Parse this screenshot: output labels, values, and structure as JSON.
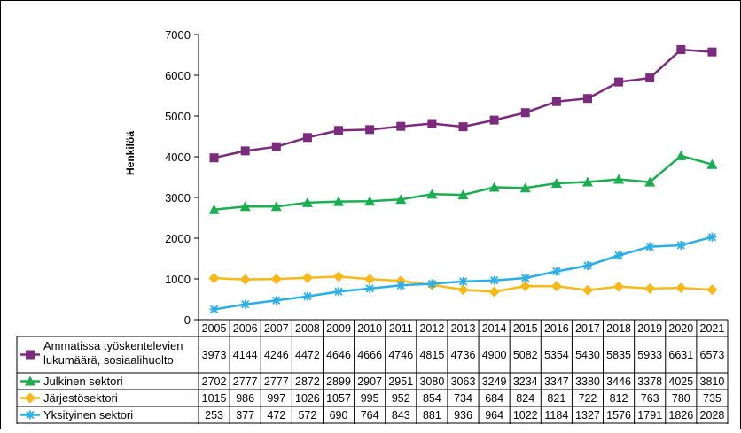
{
  "chart_data": {
    "type": "line",
    "title": "",
    "xlabel": "",
    "ylabel": "Henkilöä",
    "ylim": [
      0,
      7000
    ],
    "yticks": [
      0,
      1000,
      2000,
      3000,
      4000,
      5000,
      6000,
      7000
    ],
    "grid": false,
    "legend": "data-table-left",
    "categories": [
      "2005",
      "2006",
      "2007",
      "2008",
      "2009",
      "2010",
      "2011",
      "2012",
      "2013",
      "2014",
      "2015",
      "2016",
      "2017",
      "2018",
      "2019",
      "2020",
      "2021"
    ],
    "series": [
      {
        "name": "Ammatissa työskentelevien lukumäärä, sosiaalihuolto",
        "label_lines": [
          "Ammatissa työskentelevien",
          "lukumäärä, sosiaalihuolto"
        ],
        "marker": "square",
        "color": "#7B2A7D",
        "values": [
          3973,
          4144,
          4246,
          4472,
          4646,
          4666,
          4746,
          4815,
          4736,
          4900,
          5082,
          5354,
          5430,
          5835,
          5933,
          6631,
          6573
        ]
      },
      {
        "name": "Julkinen sektori",
        "label_lines": [
          "Julkinen sektori"
        ],
        "marker": "triangle",
        "color": "#1AAE50",
        "values": [
          2702,
          2777,
          2777,
          2872,
          2899,
          2907,
          2951,
          3080,
          3063,
          3249,
          3234,
          3347,
          3380,
          3446,
          3378,
          4025,
          3810
        ]
      },
      {
        "name": "Järjestösektori",
        "label_lines": [
          "Järjestösektori"
        ],
        "marker": "diamond",
        "color": "#F7B818",
        "values": [
          1015,
          986,
          997,
          1026,
          1057,
          995,
          952,
          854,
          734,
          684,
          824,
          821,
          722,
          812,
          763,
          780,
          735
        ]
      },
      {
        "name": "Yksityinen sektori",
        "label_lines": [
          "Yksityinen sektori"
        ],
        "marker": "asterisk",
        "color": "#2AAEE8",
        "values": [
          253,
          377,
          472,
          572,
          690,
          764,
          843,
          881,
          936,
          964,
          1022,
          1184,
          1327,
          1576,
          1791,
          1826,
          2028
        ]
      }
    ]
  }
}
